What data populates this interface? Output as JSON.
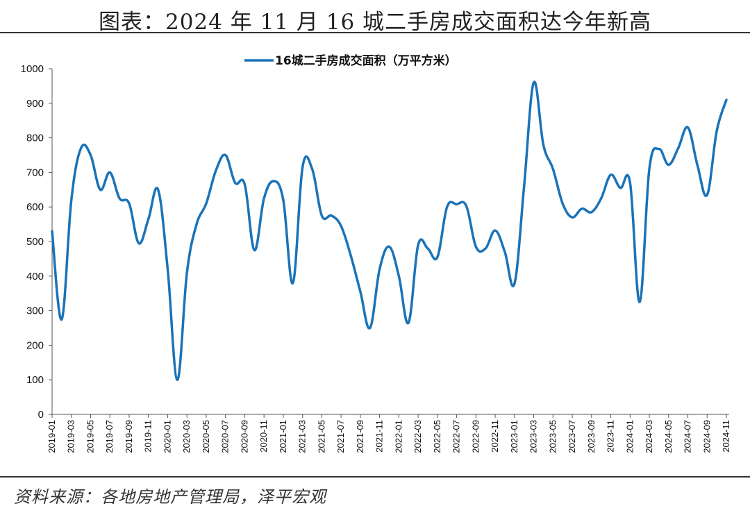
{
  "title": "图表：2024 年 11 月 16 城二手房成交面积达今年新高",
  "source": "资料来源：各地房地产管理局，泽平宏观",
  "chart_data": {
    "type": "line",
    "series": [
      {
        "name": "16城二手房成交面积（万平方米）",
        "color": "#1a73b8",
        "values": [
          530,
          275,
          620,
          770,
          750,
          650,
          700,
          625,
          610,
          495,
          565,
          650,
          420,
          100,
          410,
          550,
          610,
          705,
          750,
          670,
          665,
          475,
          625,
          675,
          620,
          380,
          715,
          710,
          575,
          575,
          545,
          460,
          355,
          250,
          420,
          485,
          400,
          265,
          490,
          480,
          455,
          600,
          608,
          603,
          485,
          480,
          532,
          470,
          378,
          660,
          960,
          780,
          710,
          610,
          570,
          595,
          585,
          625,
          693,
          655,
          670,
          325,
          710,
          768,
          722,
          770,
          830,
          720,
          635,
          820,
          910
        ]
      }
    ],
    "x_tick_labels": [
      "2019-01",
      "2019-03",
      "2019-05",
      "2019-07",
      "2019-09",
      "2019-11",
      "2020-01",
      "2020-03",
      "2020-05",
      "2020-07",
      "2020-09",
      "2020-11",
      "2021-01",
      "2021-03",
      "2021-05",
      "2021-07",
      "2021-09",
      "2021-11",
      "2022-01",
      "2022-03",
      "2022-05",
      "2022-07",
      "2022-09",
      "2022-11",
      "2023-01",
      "2023-03",
      "2023-05",
      "2023-07",
      "2023-09",
      "2023-11",
      "2024-01",
      "2024-03",
      "2024-05",
      "2024-07",
      "2024-09",
      "2024-11"
    ],
    "y_ticks": [
      0,
      100,
      200,
      300,
      400,
      500,
      600,
      700,
      800,
      900,
      1000
    ],
    "ylim": [
      0,
      1000
    ],
    "grid": false,
    "legend_position": "top-center"
  }
}
